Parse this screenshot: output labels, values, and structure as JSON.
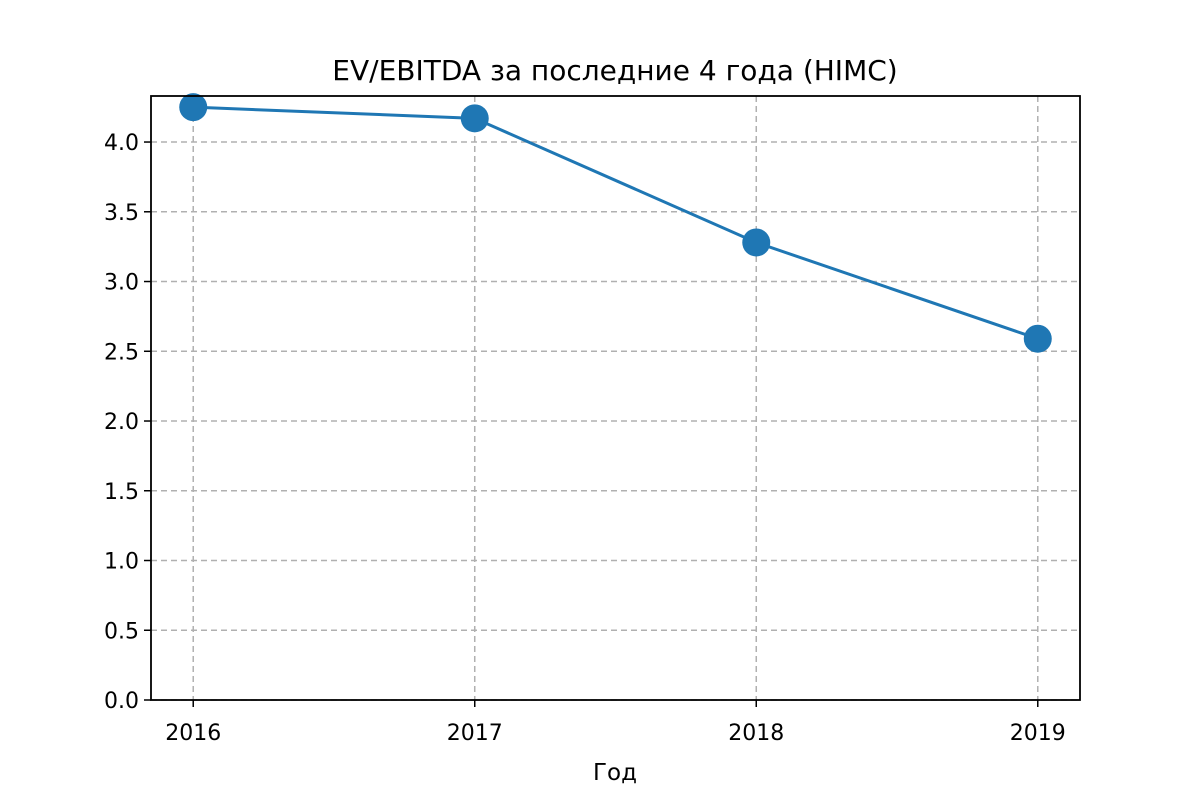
{
  "chart_data": {
    "type": "line",
    "title": "EV/EBITDA за последние 4 года (HIMC)",
    "xlabel": "Год",
    "ylabel": "",
    "categories": [
      "2016",
      "2017",
      "2018",
      "2019"
    ],
    "series": [
      {
        "values": [
          4.25,
          4.17,
          3.28,
          2.59
        ]
      }
    ],
    "ylim": [
      0,
      4.33
    ],
    "yticks": [
      "0.0",
      "0.5",
      "1.0",
      "1.5",
      "2.0",
      "2.5",
      "3.0",
      "3.5",
      "4.0"
    ],
    "grid": true,
    "marker": "circle",
    "colors": {
      "line": "#1f77b4",
      "grid": "#b0b0b0"
    }
  }
}
